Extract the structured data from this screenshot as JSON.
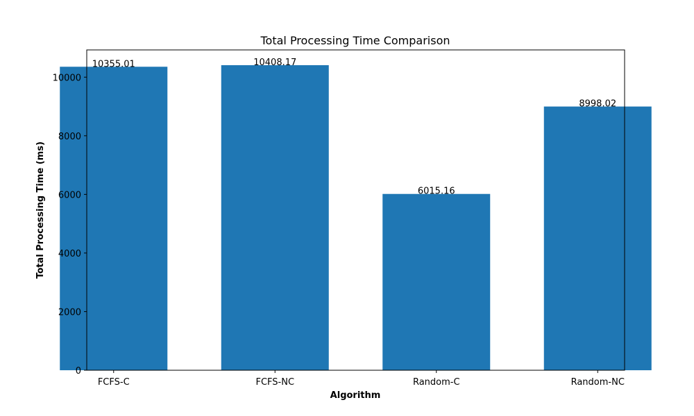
{
  "chart_data": {
    "type": "bar",
    "title": "Total Processing Time Comparison",
    "xlabel": "Algorithm",
    "ylabel": "Total Processing Time (ms)",
    "categories": [
      "FCFS-C",
      "FCFS-NC",
      "Random-C",
      "Random-NC"
    ],
    "values": [
      10355.01,
      10408.17,
      6015.16,
      8998.02
    ],
    "value_labels": [
      "10355.01",
      "10408.17",
      "6015.16",
      "8998.02"
    ],
    "ylim": [
      0,
      10929
    ],
    "yticks": [
      0,
      2000,
      4000,
      6000,
      8000,
      10000
    ],
    "grid": false,
    "legend": "none",
    "bar_color": "#1f77b4"
  }
}
